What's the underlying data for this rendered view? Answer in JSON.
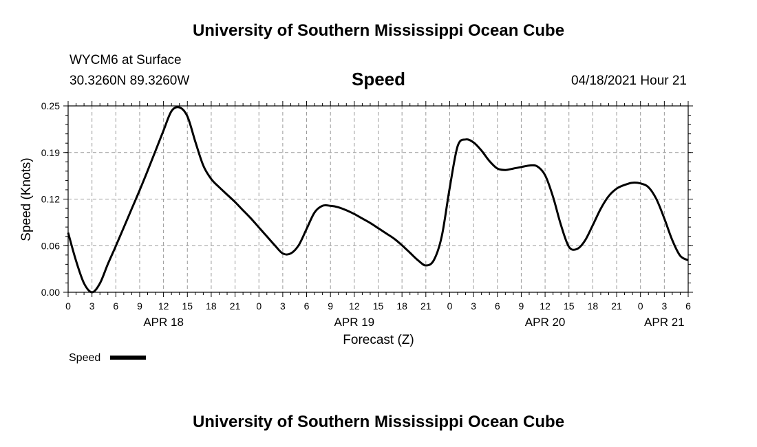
{
  "header": {
    "title_top": "University of Southern Mississippi Ocean Cube",
    "station": "WYCM6 at Surface",
    "coords": "30.3260N  89.3260W",
    "variable": "Speed",
    "run_time": "04/18/2021 Hour 21",
    "title_bottom": "University of Southern Mississippi Ocean Cube"
  },
  "chart_data": {
    "type": "line",
    "title": "Speed",
    "xlabel": "Forecast (Z)",
    "ylabel": "Speed (Knots)",
    "ylim": [
      0.0,
      0.25
    ],
    "xlim": [
      0,
      78
    ],
    "yticks": [
      "0.00",
      "0.06",
      "0.12",
      "0.19",
      "0.25"
    ],
    "ytick_values": [
      0.0,
      0.0625,
      0.125,
      0.1875,
      0.25
    ],
    "xtick_labels": [
      "0",
      "3",
      "6",
      "9",
      "12",
      "15",
      "18",
      "21",
      "0",
      "3",
      "6",
      "9",
      "12",
      "15",
      "18",
      "21",
      "0",
      "3",
      "6",
      "9",
      "12",
      "15",
      "18",
      "21",
      "0",
      "3",
      "6"
    ],
    "xtick_hours": [
      0,
      3,
      6,
      9,
      12,
      15,
      18,
      21,
      24,
      27,
      30,
      33,
      36,
      39,
      42,
      45,
      48,
      51,
      54,
      57,
      60,
      63,
      66,
      69,
      72,
      75,
      78
    ],
    "date_labels": [
      {
        "label": "APR 18",
        "hour": 12
      },
      {
        "label": "APR 19",
        "hour": 36
      },
      {
        "label": "APR 20",
        "hour": 60
      },
      {
        "label": "APR 21",
        "hour": 75
      }
    ],
    "grid": true,
    "legend_position": "bottom-left",
    "series": [
      {
        "name": "Speed",
        "color": "#000000",
        "x": [
          0,
          1,
          2,
          3,
          4,
          5,
          6,
          7,
          8,
          9,
          10,
          11,
          12,
          13,
          14,
          15,
          16,
          17,
          18,
          19,
          20,
          21,
          22,
          23,
          24,
          25,
          26,
          27,
          28,
          29,
          30,
          31,
          32,
          33,
          34,
          35,
          36,
          37,
          38,
          39,
          40,
          41,
          42,
          43,
          44,
          45,
          46,
          47,
          48,
          49,
          50,
          51,
          52,
          53,
          54,
          55,
          56,
          57,
          58,
          59,
          60,
          61,
          62,
          63,
          64,
          65,
          66,
          67,
          68,
          69,
          70,
          71,
          72,
          73,
          74,
          75,
          76,
          77,
          78
        ],
        "y": [
          0.08,
          0.042,
          0.012,
          0.0,
          0.012,
          0.038,
          0.062,
          0.087,
          0.112,
          0.137,
          0.163,
          0.19,
          0.217,
          0.243,
          0.248,
          0.236,
          0.202,
          0.17,
          0.152,
          0.141,
          0.131,
          0.121,
          0.11,
          0.099,
          0.087,
          0.075,
          0.063,
          0.052,
          0.052,
          0.063,
          0.085,
          0.107,
          0.116,
          0.116,
          0.114,
          0.11,
          0.105,
          0.099,
          0.093,
          0.086,
          0.079,
          0.072,
          0.063,
          0.053,
          0.043,
          0.036,
          0.043,
          0.075,
          0.14,
          0.196,
          0.205,
          0.201,
          0.19,
          0.176,
          0.166,
          0.164,
          0.166,
          0.168,
          0.17,
          0.169,
          0.157,
          0.128,
          0.09,
          0.061,
          0.058,
          0.069,
          0.09,
          0.112,
          0.129,
          0.139,
          0.144,
          0.147,
          0.146,
          0.141,
          0.125,
          0.099,
          0.07,
          0.049,
          0.043
        ]
      }
    ]
  }
}
